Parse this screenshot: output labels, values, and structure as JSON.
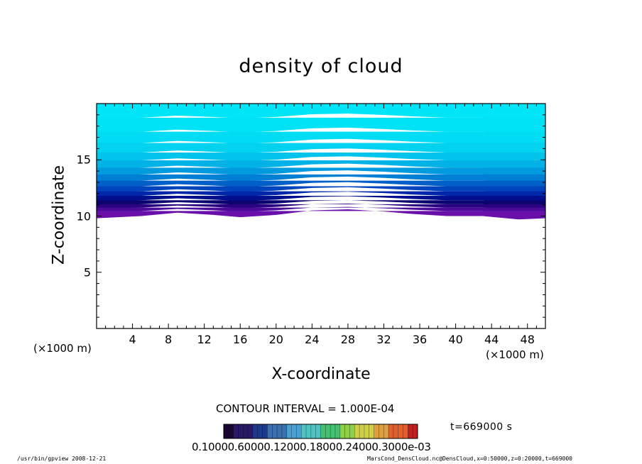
{
  "chart_data": {
    "type": "heatmap",
    "title": "density of cloud",
    "xlabel": "X-coordinate",
    "ylabel": "Z-coordinate",
    "x_unit": "(×1000 m)",
    "y_unit": "(×1000 m)",
    "xlim": [
      0,
      50
    ],
    "ylim": [
      0,
      20
    ],
    "x_ticks": [
      4,
      8,
      12,
      16,
      20,
      24,
      28,
      32,
      36,
      40,
      44,
      48
    ],
    "y_ticks": [
      5,
      10,
      15
    ],
    "contour_interval": "CONTOUR INTERVAL = 1.000E-04",
    "time_label": "t=669000 s",
    "colorbar_labels_text": "0.10000.60000.12000.18000.24000.3000e-03",
    "colorbar_range": [
      0.0,
      0.0003
    ],
    "colorbar_colors": [
      "#1a0633",
      "#2a1a66",
      "#1e3a8c",
      "#3a6fb0",
      "#4aa0d0",
      "#4ec3c0",
      "#44c070",
      "#8fd048",
      "#d0d048",
      "#e0a040",
      "#e06030",
      "#c02020"
    ],
    "field_rows": [
      {
        "z": 19.5,
        "color": "#00e5f7"
      },
      {
        "z": 18.0,
        "color": "#00e2f5"
      },
      {
        "z": 17.0,
        "color": "#00dcf3"
      },
      {
        "z": 16.0,
        "color": "#00d2f0"
      },
      {
        "z": 15.3,
        "color": "#00c4ec"
      },
      {
        "z": 14.6,
        "color": "#00b2e6"
      },
      {
        "z": 14.0,
        "color": "#009ade"
      },
      {
        "z": 13.4,
        "color": "#0080d4"
      },
      {
        "z": 12.9,
        "color": "#0060c8"
      },
      {
        "z": 12.4,
        "color": "#0044bc"
      },
      {
        "z": 12.0,
        "color": "#0026aa"
      },
      {
        "z": 11.6,
        "color": "#000f8c"
      },
      {
        "z": 11.2,
        "color": "#0a0370"
      },
      {
        "z": 10.9,
        "color": "#2a0480"
      },
      {
        "z": 10.6,
        "color": "#4a0a9a"
      },
      {
        "z": 10.3,
        "color": "#6a10aa"
      }
    ],
    "cloud_bottom": [
      {
        "x": 0,
        "z": 9.8
      },
      {
        "x": 5,
        "z": 10.0
      },
      {
        "x": 9,
        "z": 10.3
      },
      {
        "x": 13,
        "z": 10.1
      },
      {
        "x": 16,
        "z": 9.9
      },
      {
        "x": 20,
        "z": 10.1
      },
      {
        "x": 24,
        "z": 10.5
      },
      {
        "x": 28,
        "z": 10.6
      },
      {
        "x": 32,
        "z": 10.4
      },
      {
        "x": 35,
        "z": 10.2
      },
      {
        "x": 39,
        "z": 10.0
      },
      {
        "x": 43,
        "z": 10.0
      },
      {
        "x": 47,
        "z": 9.7
      },
      {
        "x": 50,
        "z": 9.8
      }
    ]
  },
  "footer": {
    "left": "/usr/bin/gpview   2008-12-21",
    "right": "MarsCond_DensCloud.nc@DensCloud,x=0:50000,z=0:20000,t=669000"
  }
}
